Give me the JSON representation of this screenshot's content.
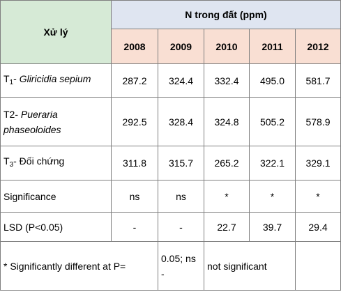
{
  "table": {
    "header": {
      "treatment_label": "Xử lý",
      "group_label": "N trong đất (ppm)",
      "years": [
        "2008",
        "2009",
        "2010",
        "2011",
        "2012"
      ]
    },
    "rows": [
      {
        "label_prefix": "T",
        "label_sub": "1",
        "label_sep": "- ",
        "label_italic": "Gliricidia sepium",
        "values": [
          "287.2",
          "324.4",
          "332.4",
          "495.0",
          "581.7"
        ]
      },
      {
        "label_prefix": "T2- ",
        "label_italic": "Pueraria phaseoloides",
        "values": [
          "292.5",
          "328.4",
          "324.8",
          "505.2",
          "578.9"
        ]
      },
      {
        "label_prefix": "T",
        "label_sub": "3",
        "label_sep": "- Đối chứng",
        "values": [
          "311.8",
          "315.7",
          "265.2",
          "322.1",
          "329.1"
        ]
      },
      {
        "label": "Significance",
        "values": [
          "ns",
          "ns",
          "*",
          "*",
          "*"
        ]
      },
      {
        "label": "LSD (P<0.05)",
        "values": [
          "-",
          "-",
          "22.7",
          "39.7",
          "29.4"
        ]
      }
    ],
    "footnote": {
      "part1": "* Significantly different at P=",
      "part2": "0.05; ns -",
      "part3": "not significant"
    }
  }
}
